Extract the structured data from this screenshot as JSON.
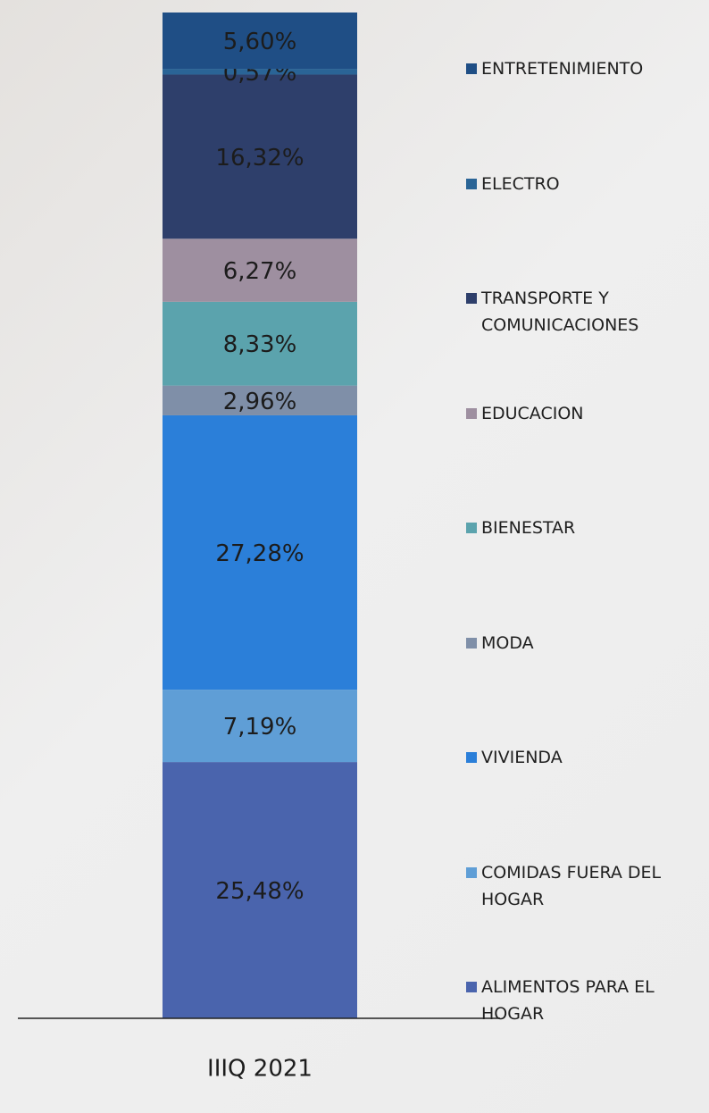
{
  "chart_data": {
    "type": "bar",
    "stacked": true,
    "categories": [
      "IIIQ 2021"
    ],
    "series": [
      {
        "name": "ALIMENTOS PARA EL HOGAR",
        "color": "#4a64ad",
        "values": [
          25.48
        ],
        "value_labels": [
          "25,48%"
        ]
      },
      {
        "name": "COMIDAS FUERA DEL HOGAR",
        "color": "#5f9ed6",
        "values": [
          7.19
        ],
        "value_labels": [
          "7,19%"
        ]
      },
      {
        "name": "VIVIENDA",
        "color": "#2b7fd9",
        "values": [
          27.28
        ],
        "value_labels": [
          "27,28%"
        ]
      },
      {
        "name": "MODA",
        "color": "#7f8fa8",
        "values": [
          2.96
        ],
        "value_labels": [
          "2,96%"
        ]
      },
      {
        "name": "BIENESTAR",
        "color": "#5ba3ad",
        "values": [
          8.33
        ],
        "value_labels": [
          "8,33%"
        ]
      },
      {
        "name": "EDUCACION",
        "color": "#9e8fa0",
        "values": [
          6.27
        ],
        "value_labels": [
          "6,27%"
        ]
      },
      {
        "name": "TRANSPORTE Y COMUNICACIONES",
        "color": "#2e3f6b",
        "values": [
          16.32
        ],
        "value_labels": [
          "16,32%"
        ]
      },
      {
        "name": "ELECTRO",
        "color": "#2a6496",
        "values": [
          0.57
        ],
        "value_labels": [
          "0,57%"
        ]
      },
      {
        "name": "ENTRETENIMIENTO",
        "color": "#1f4e85",
        "values": [
          5.6
        ],
        "value_labels": [
          "5,60%"
        ]
      }
    ]
  }
}
